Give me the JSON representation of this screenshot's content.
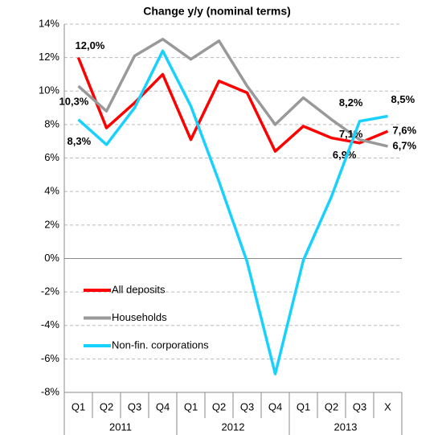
{
  "chart_data": {
    "type": "line",
    "title": "Change y/y (nominal terms)",
    "categories": [
      "Q1",
      "Q2",
      "Q3",
      "Q4",
      "Q1",
      "Q2",
      "Q3",
      "Q4",
      "Q1",
      "Q2",
      "Q3",
      "X"
    ],
    "years": [
      "2011",
      "2012",
      "2013"
    ],
    "series": [
      {
        "name": "All deposits",
        "color": "#ff0000",
        "values": [
          12.0,
          7.8,
          9.3,
          11.0,
          7.1,
          10.6,
          9.9,
          6.4,
          7.9,
          7.2,
          6.9,
          7.6
        ],
        "value_labels": [
          "12,0%",
          null,
          null,
          null,
          null,
          null,
          null,
          null,
          null,
          null,
          "6,9%",
          "7,6%"
        ]
      },
      {
        "name": "Households",
        "color": "#999999",
        "values": [
          10.3,
          8.8,
          12.1,
          13.1,
          11.9,
          13.0,
          10.3,
          8.0,
          9.6,
          8.3,
          7.1,
          6.7
        ],
        "value_labels": [
          "10,3%",
          null,
          null,
          null,
          null,
          null,
          null,
          null,
          null,
          null,
          "7,1%",
          "6,7%"
        ]
      },
      {
        "name": "Non-fin. corporations",
        "color": "#19d1ff",
        "values": [
          8.3,
          6.8,
          9.0,
          12.4,
          9.1,
          4.6,
          -0.2,
          -6.9,
          -0.1,
          3.7,
          8.2,
          8.5
        ],
        "value_labels": [
          "8,3%",
          null,
          null,
          null,
          null,
          null,
          null,
          null,
          null,
          null,
          "8,2%",
          "8,5%"
        ]
      }
    ],
    "ylim": [
      -8,
      14
    ],
    "yticks": [
      {
        "value": -8,
        "label": "-8%"
      },
      {
        "value": -6,
        "label": "-6%"
      },
      {
        "value": -4,
        "label": "-4%"
      },
      {
        "value": -2,
        "label": "-2%"
      },
      {
        "value": 0,
        "label": "0%"
      },
      {
        "value": 2,
        "label": "2%"
      },
      {
        "value": 4,
        "label": "4%"
      },
      {
        "value": 6,
        "label": "6%"
      },
      {
        "value": 8,
        "label": "8%"
      },
      {
        "value": 10,
        "label": "10%"
      },
      {
        "value": 12,
        "label": "12%"
      },
      {
        "value": 14,
        "label": "14%"
      }
    ],
    "grid": true
  }
}
